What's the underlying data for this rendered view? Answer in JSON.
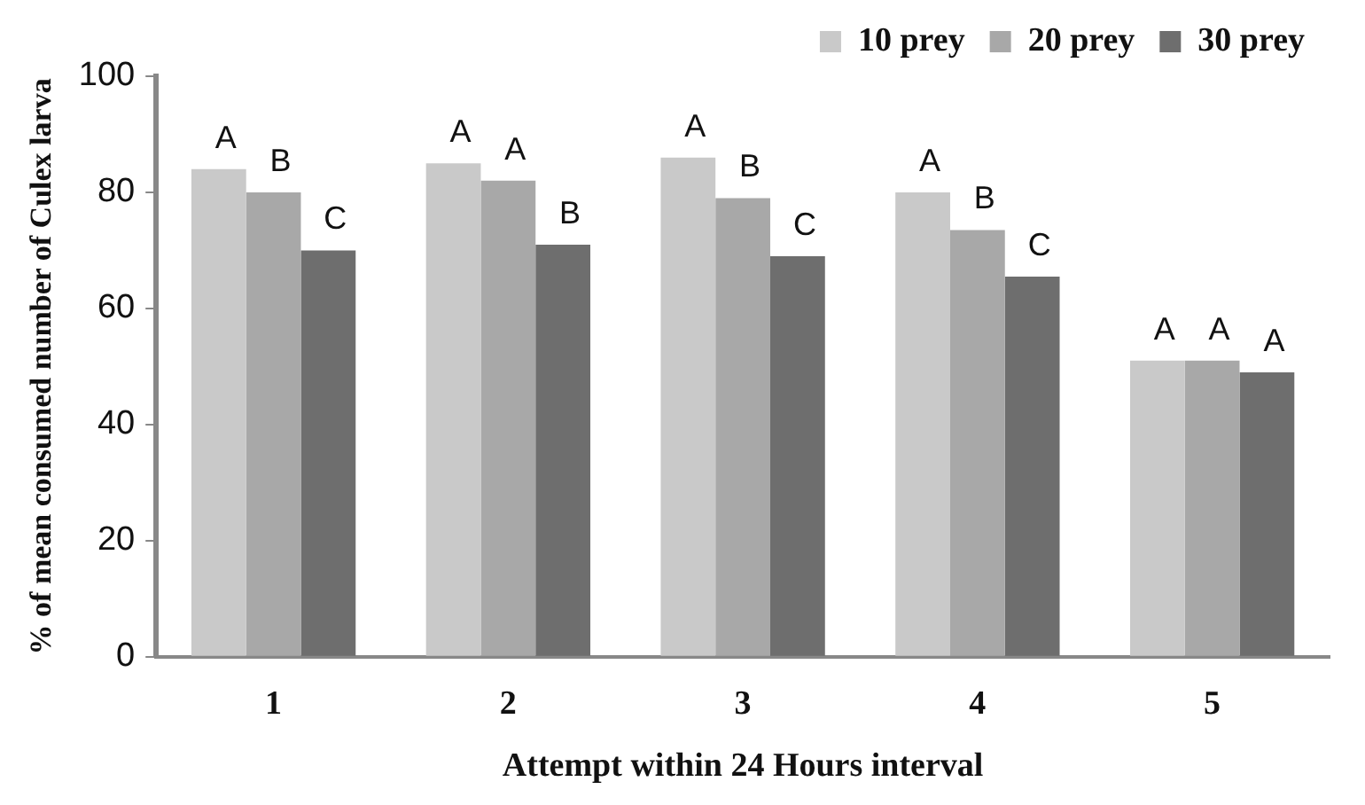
{
  "chart_data": {
    "type": "bar",
    "xlabel": "Attempt within 24 Hours interval",
    "ylabel": "% of mean consumed number of Culex larva",
    "categories": [
      "1",
      "2",
      "3",
      "4",
      "5"
    ],
    "series": [
      {
        "name": "10 prey",
        "color": "#c9c9c9",
        "values": [
          84,
          85,
          86,
          80,
          51
        ],
        "value_labels": [
          "A",
          "A",
          "A",
          "A",
          "A"
        ]
      },
      {
        "name": "20 prey",
        "color": "#a8a8a8",
        "values": [
          80,
          82,
          79,
          73.5,
          51
        ],
        "value_labels": [
          "B",
          "A",
          "B",
          "B",
          "A"
        ]
      },
      {
        "name": "30 prey",
        "color": "#6e6e6e",
        "values": [
          70,
          71,
          69,
          65.5,
          49
        ],
        "value_labels": [
          "C",
          "B",
          "C",
          "C",
          "A"
        ]
      }
    ],
    "ylim": [
      0,
      100
    ],
    "yticks": [
      0,
      20,
      40,
      60,
      80,
      100
    ],
    "grid": false,
    "legend": "top"
  }
}
